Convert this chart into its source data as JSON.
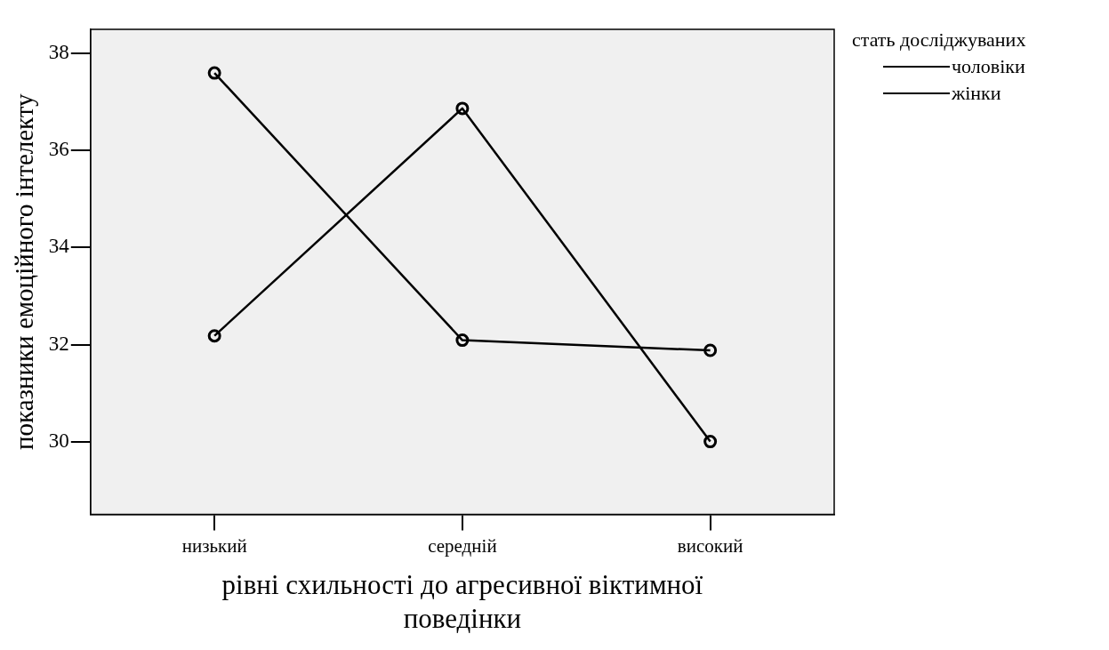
{
  "chart_data": {
    "type": "line",
    "xlabel": "рівні схильності до агресивної віктимної поведінки",
    "ylabel": "показники емоційного інтелекту",
    "legend_title": "стать досліджуваних",
    "categories": [
      "низький",
      "середній",
      "високий"
    ],
    "series": [
      {
        "name": "чоловіки",
        "color": "#000000",
        "values": [
          37.6,
          32.09,
          31.88
        ]
      },
      {
        "name": "жінки",
        "color": "#000000",
        "values": [
          32.18,
          36.87,
          30.0
        ]
      }
    ],
    "ylim": [
      28.5,
      38.5
    ],
    "yticks": [
      30,
      32,
      34,
      36,
      38
    ],
    "grid": false,
    "legend": "top right",
    "marker": "circle",
    "line_style": "solid"
  }
}
